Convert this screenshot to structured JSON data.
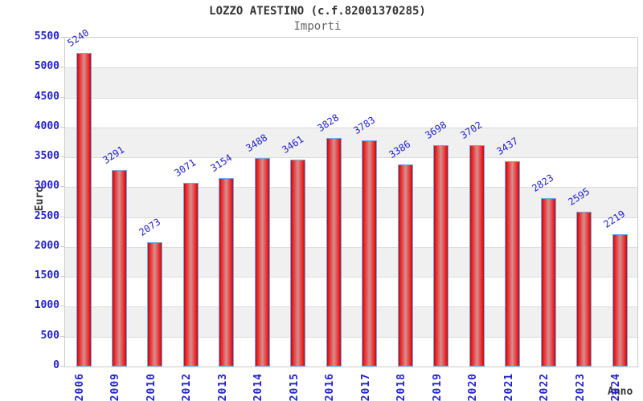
{
  "header": {
    "title": "LOZZO ATESTINO (c.f.82001370285)",
    "subtitle": "Importi"
  },
  "chart_data": {
    "type": "bar",
    "title": "LOZZO ATESTINO (c.f.82001370285)",
    "subtitle": "Importi",
    "xlabel": "Anno",
    "ylabel": "Euro",
    "categories": [
      "2006",
      "2009",
      "2010",
      "2012",
      "2013",
      "2014",
      "2015",
      "2016",
      "2017",
      "2018",
      "2019",
      "2020",
      "2021",
      "2022",
      "2023",
      "2024"
    ],
    "values": [
      5240,
      3291,
      2073,
      3071,
      3154,
      3488,
      3461,
      3828,
      3783,
      3386,
      3698,
      3702,
      3437,
      2823,
      2595,
      2219
    ],
    "ylim": [
      0,
      5500
    ],
    "ytick_step": 500,
    "grid": true,
    "legend": false,
    "value_labels_rotated": true,
    "colors": {
      "axis_text": "#2222cc",
      "value_text": "#2222cc",
      "title_text": "#333333",
      "subtitle_text": "#666666",
      "band_white": "#ffffff",
      "band_gray": "#f0f0f0",
      "gridline": "#dcdcdc",
      "plot_border": "#cccccc",
      "bar_border": "#74a9e4",
      "bar_edge": "#b01114",
      "bar_bright": "#ee2224",
      "bar_center": "#d49090"
    }
  }
}
